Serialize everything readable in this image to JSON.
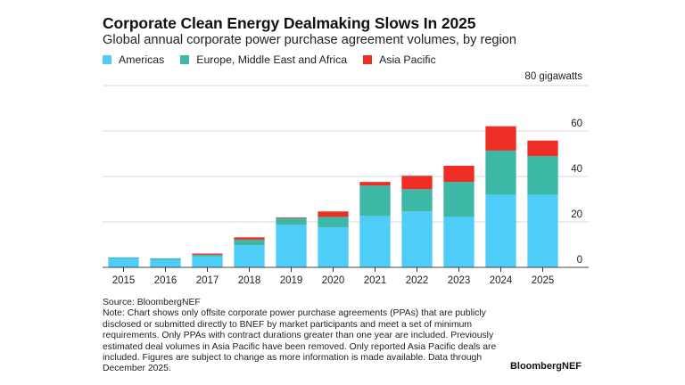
{
  "header": {
    "title": "Corporate Clean Energy Dealmaking Slows In 2025",
    "subtitle": "Global annual corporate power purchase agreement volumes, by region"
  },
  "legend": [
    {
      "label": "Americas",
      "color": "#4fcdf9"
    },
    {
      "label": "Europe, Middle East and Africa",
      "color": "#3db8a6"
    },
    {
      "label": "Asia Pacific",
      "color": "#ee2d24"
    }
  ],
  "footer": {
    "source": "Source: BloombergNEF",
    "note": "Note: Chart shows only offsite corporate power purchase agreements (PPAs) that are publicly disclosed or submitted directly to BNEF by market participants and meet a set of minimum requirements. Only PPAs with contract durations greater than one year are included. Previously estimated deal volumes in Asia Pacific have been removed. Only reported Asia Pacific deals are included. Figures are subject to change as more information is made available. Data through December 2025.",
    "brand": "BloombergNEF"
  },
  "chart_data": {
    "type": "bar",
    "stacked": true,
    "title": "Corporate Clean Energy Dealmaking Slows In 2025",
    "subtitle": "Global annual corporate power purchase agreement volumes, by region",
    "xlabel": "",
    "ylabel": "gigawatts",
    "unit_label": "80 gigawatts",
    "categories": [
      "2015",
      "2016",
      "2017",
      "2018",
      "2019",
      "2020",
      "2021",
      "2022",
      "2023",
      "2024",
      "2025"
    ],
    "series": [
      {
        "name": "Americas",
        "color": "#4fcdf9",
        "values": [
          3.9,
          3.3,
          4.8,
          9.7,
          18.7,
          17.6,
          22.6,
          24.6,
          22.2,
          32.0,
          32.0
        ]
      },
      {
        "name": "Europe, Middle East and Africa",
        "color": "#3db8a6",
        "values": [
          0.5,
          0.7,
          0.8,
          2.5,
          3.0,
          4.6,
          13.4,
          9.8,
          15.4,
          19.4,
          17.0
        ]
      },
      {
        "name": "Asia Pacific",
        "color": "#ee2d24",
        "values": [
          0.0,
          0.0,
          0.5,
          1.0,
          0.3,
          2.4,
          1.6,
          5.9,
          7.1,
          10.7,
          6.8
        ]
      }
    ],
    "ylim": [
      0,
      80
    ],
    "yticks": [
      0,
      20,
      40,
      60
    ],
    "ytick_labels": [
      "0",
      "20",
      "40",
      "60"
    ],
    "grid": true,
    "y_axis_position": "right",
    "legend_position": "top-left"
  }
}
